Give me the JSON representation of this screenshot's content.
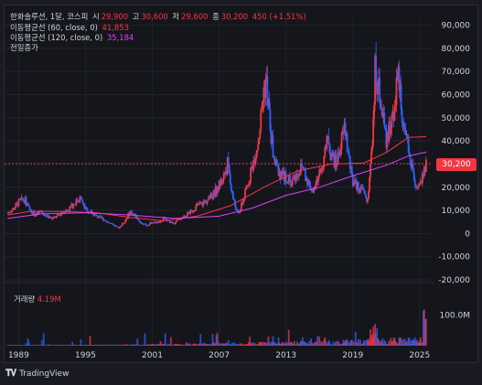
{
  "header": {
    "symbol": "한화솔루션, 1달, 코스피",
    "o_label": "시",
    "o_value": "29,900",
    "h_label": "고",
    "h_value": "30,600",
    "l_label": "저",
    "l_value": "29,600",
    "c_label": "종",
    "c_value": "30,200",
    "change": "450 (+1.51%)",
    "ma60_label": "이동평균선 (60, close, 0)",
    "ma60_value": "41,853",
    "ma120_label": "이동평균선 (120, close, 0)",
    "ma120_value": "35,184",
    "prev_close_label": "전일종가"
  },
  "volume": {
    "label": "거래량",
    "value": "4.19M"
  },
  "last_price_badge": "30,200",
  "footer": {
    "brand": "TradingView",
    "logo": "tv-logo-icon"
  },
  "colors": {
    "up": "#f23645",
    "down": "#2962ff",
    "ma60": "#f23645",
    "ma120": "#e040fb",
    "background": "#15161c",
    "price_line": "#f23645"
  },
  "chart_data": {
    "type": "bar",
    "subtype": "monthly candlestick with moving averages and volume",
    "y_axis": {
      "ticks": [
        "90,000",
        "80,000",
        "70,000",
        "60,000",
        "50,000",
        "40,000",
        "30,000",
        "20,000",
        "10,000",
        "0",
        "-10,000",
        "-20,000"
      ],
      "range": [
        -20000,
        93000
      ],
      "side": "right"
    },
    "volume_axis": {
      "ticks": [
        "100.0M"
      ],
      "range": [
        0,
        160
      ]
    },
    "x_axis": {
      "ticks": [
        "1989",
        "1995",
        "2001",
        "2007",
        "2013",
        "2019",
        "2025"
      ],
      "range": [
        1987.9,
        2026
      ]
    },
    "series": [
      {
        "name": "close",
        "points": [
          [
            1988,
            9000
          ],
          [
            1988.5,
            10500
          ],
          [
            1989,
            13500
          ],
          [
            1989.5,
            15000
          ],
          [
            1990,
            10000
          ],
          [
            1990.5,
            8000
          ],
          [
            1991,
            9500
          ],
          [
            1991.5,
            7500
          ],
          [
            1992,
            6500
          ],
          [
            1992.5,
            7500
          ],
          [
            1993,
            9500
          ],
          [
            1993.5,
            10500
          ],
          [
            1994,
            13000
          ],
          [
            1994.5,
            15500
          ],
          [
            1995,
            10500
          ],
          [
            1995.5,
            9000
          ],
          [
            1996,
            7500
          ],
          [
            1996.5,
            6500
          ],
          [
            1997,
            5000
          ],
          [
            1997.5,
            3500
          ],
          [
            1998,
            2500
          ],
          [
            1998.5,
            5000
          ],
          [
            1999,
            9500
          ],
          [
            1999.5,
            7500
          ],
          [
            2000,
            4500
          ],
          [
            2000.5,
            3500
          ],
          [
            2001,
            5000
          ],
          [
            2001.5,
            4500
          ],
          [
            2002,
            6500
          ],
          [
            2002.5,
            5000
          ],
          [
            2003,
            4500
          ],
          [
            2003.5,
            6500
          ],
          [
            2004,
            8000
          ],
          [
            2004.5,
            9500
          ],
          [
            2005,
            12000
          ],
          [
            2005.5,
            13000
          ],
          [
            2006,
            14500
          ],
          [
            2006.5,
            17000
          ],
          [
            2007,
            21000
          ],
          [
            2007.5,
            26000
          ],
          [
            2007.8,
            31000
          ],
          [
            2008,
            22000
          ],
          [
            2008.3,
            14000
          ],
          [
            2008.7,
            8000
          ],
          [
            2009,
            12000
          ],
          [
            2009.5,
            20000
          ],
          [
            2010,
            30000
          ],
          [
            2010.5,
            40000
          ],
          [
            2010.8,
            52000
          ],
          [
            2011,
            62000
          ],
          [
            2011.2,
            67000
          ],
          [
            2011.5,
            50000
          ],
          [
            2011.8,
            36000
          ],
          [
            2012,
            30000
          ],
          [
            2012.5,
            26000
          ],
          [
            2013,
            24000
          ],
          [
            2013.5,
            22000
          ],
          [
            2014,
            26000
          ],
          [
            2014.5,
            29000
          ],
          [
            2015,
            22000
          ],
          [
            2015.5,
            18000
          ],
          [
            2016,
            26000
          ],
          [
            2016.5,
            34000
          ],
          [
            2016.8,
            42000
          ],
          [
            2017,
            35000
          ],
          [
            2017.5,
            30000
          ],
          [
            2018,
            40000
          ],
          [
            2018.3,
            46000
          ],
          [
            2018.6,
            34000
          ],
          [
            2018.9,
            24000
          ],
          [
            2019,
            22000
          ],
          [
            2019.5,
            20000
          ],
          [
            2020,
            18000
          ],
          [
            2020.3,
            13000
          ],
          [
            2020.6,
            30000
          ],
          [
            2020.9,
            55000
          ],
          [
            2021,
            72000
          ],
          [
            2021.3,
            62000
          ],
          [
            2021.6,
            55000
          ],
          [
            2021.9,
            42000
          ],
          [
            2022,
            38000
          ],
          [
            2022.4,
            48000
          ],
          [
            2022.7,
            55000
          ],
          [
            2023,
            68000
          ],
          [
            2023.3,
            60000
          ],
          [
            2023.6,
            42000
          ],
          [
            2023.9,
            38000
          ],
          [
            2024,
            34000
          ],
          [
            2024.4,
            26000
          ],
          [
            2024.7,
            18000
          ],
          [
            2025,
            21000
          ],
          [
            2025.4,
            26000
          ],
          [
            2025.6,
            30200
          ]
        ]
      },
      {
        "name": "이동평균선 (60, close, 0)",
        "points": [
          [
            1988,
            8000
          ],
          [
            1990,
            9500
          ],
          [
            1993,
            9500
          ],
          [
            1996,
            9000
          ],
          [
            1999,
            7000
          ],
          [
            2002,
            5500
          ],
          [
            2005,
            7500
          ],
          [
            2008,
            12000
          ],
          [
            2011,
            20000
          ],
          [
            2014,
            27000
          ],
          [
            2017,
            30000
          ],
          [
            2020,
            30500
          ],
          [
            2022,
            35000
          ],
          [
            2024,
            41500
          ],
          [
            2025.6,
            41853
          ]
        ]
      },
      {
        "name": "이동평균선 (120, close, 0)",
        "points": [
          [
            1988,
            6500
          ],
          [
            1991,
            8500
          ],
          [
            1995,
            9000
          ],
          [
            1999,
            8000
          ],
          [
            2003,
            6500
          ],
          [
            2007,
            7500
          ],
          [
            2010,
            11000
          ],
          [
            2013,
            16500
          ],
          [
            2016,
            20000
          ],
          [
            2019,
            25000
          ],
          [
            2022,
            29500
          ],
          [
            2024,
            33500
          ],
          [
            2025.6,
            35184
          ]
        ]
      }
    ],
    "annotations": [
      "30,200"
    ]
  }
}
